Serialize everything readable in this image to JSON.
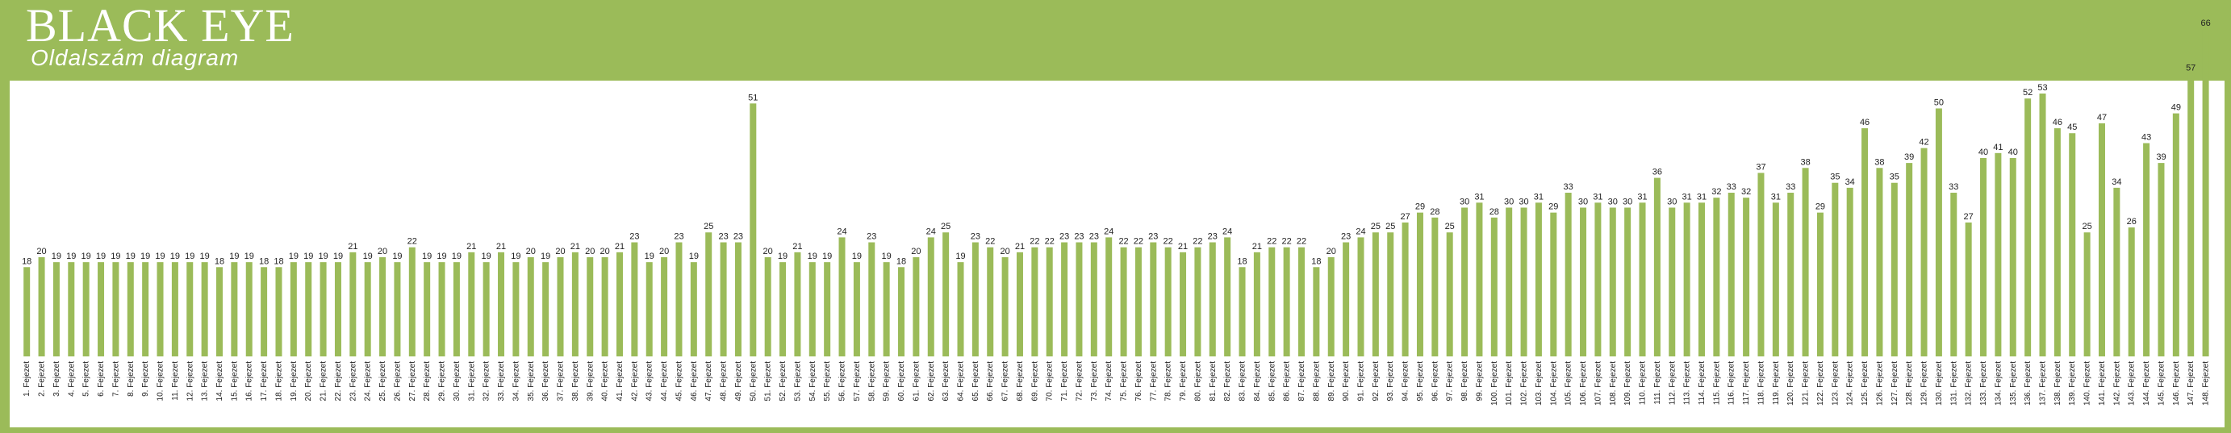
{
  "brand": {
    "title": "BLACK EYE",
    "subtitle": "Oldalszám diagram"
  },
  "colors": {
    "frame": "#9BBB59",
    "bar": "#9BBB59",
    "background": "#ffffff"
  },
  "chart_data": {
    "type": "bar",
    "title": "Oldalszám diagram",
    "xlabel": "",
    "ylabel": "",
    "grid": false,
    "legend": false,
    "categories": [
      "1. Fejezet",
      "2. Fejezet",
      "3. Fejezet",
      "4. Fejezet",
      "5. Fejezet",
      "6. Fejezet",
      "7. Fejezet",
      "8. Fejezet",
      "9. Fejezet",
      "10. Fejezet",
      "11. Fejezet",
      "12. Fejezet",
      "13. Fejezet",
      "14. Fejezet",
      "15. Fejezet",
      "16. Fejezet",
      "17. Fejezet",
      "18. Fejezet",
      "19. Fejezet",
      "20. Fejezet",
      "21. Fejezet",
      "22. Fejezet",
      "23. Fejezet",
      "24. Fejezet",
      "25. Fejezet",
      "26. Fejezet",
      "27. Fejezet",
      "28. Fejezet",
      "29. Fejezet",
      "30. Fejezet",
      "31. Fejezet",
      "32. Fejezet",
      "33. Fejezet",
      "34. Fejezet",
      "35. Fejezet",
      "36. Fejezet",
      "37. Fejezet",
      "38. Fejezet",
      "39. Fejezet",
      "40. Fejezet",
      "41. Fejezet",
      "42. Fejezet",
      "43. Fejezet",
      "44. Fejezet",
      "45. Fejezet",
      "46. Fejezet",
      "47. Fejezet",
      "48. Fejezet",
      "49. Fejezet",
      "50. Fejezet",
      "51. Fejezet",
      "52. Fejezet",
      "53. Fejezet",
      "54. Fejezet",
      "55. Fejezet",
      "56. Fejezet",
      "57. Fejezet",
      "58. Fejezet",
      "59. Fejezet",
      "60. Fejezet",
      "61. Fejezet",
      "62. Fejezet",
      "63. Fejezet",
      "64. Fejezet",
      "65. Fejezet",
      "66. Fejezet",
      "67. Fejezet",
      "68. Fejezet",
      "69. Fejezet",
      "70. Fejezet",
      "71. Fejezet",
      "72. Fejezet",
      "73. Fejezet",
      "74. Fejezet",
      "75. Fejezet",
      "76. Fejezet",
      "77. Fejezet",
      "78. Fejezet",
      "79. Fejezet",
      "80. Fejezet",
      "81. Fejezet",
      "82. Fejezet",
      "83. Fejezet",
      "84. Fejezet",
      "85. Fejezet",
      "86. Fejezet",
      "87. Fejezet",
      "88. Fejezet",
      "89. Fejezet",
      "90. Fejezet",
      "91. Fejezet",
      "92. Fejezet",
      "93. Fejezet",
      "94. Fejezet",
      "95. Fejezet",
      "96. Fejezet",
      "97. Fejezet",
      "98. Fejezet",
      "99. Fejezet",
      "100. Fejezet",
      "101. Fejezet",
      "102. Fejezet",
      "103. Fejezet",
      "104. Fejezet",
      "105. Fejezet",
      "106. Fejezet",
      "107. Fejezet",
      "108. Fejezet",
      "109. Fejezet",
      "110. Fejezet",
      "111. Fejezet",
      "112. Fejezet",
      "113. Fejezet",
      "114. Fejezet",
      "115. Fejezet",
      "116. Fejezet",
      "117. Fejezet",
      "118. Fejezet",
      "119. Fejezet",
      "120. Fejezet",
      "121. Fejezet",
      "122. Fejezet",
      "123. Fejezet",
      "124. Fejezet",
      "125. Fejezet",
      "126. Fejezet",
      "127. Fejezet",
      "128. Fejezet",
      "129. Fejezet",
      "130. Fejezet",
      "131. Fejezet",
      "132. Fejezet",
      "133. Fejezet",
      "134. Fejezet",
      "135. Fejezet",
      "136. Fejezet",
      "137. Fejezet",
      "138. Fejezet",
      "139. Fejezet",
      "140. Fejezet",
      "141. Fejezet",
      "142. Fejezet",
      "143. Fejezet",
      "144. Fejezet",
      "145. Fejezet",
      "146. Fejezet",
      "147. Fejezet",
      "148. Fejezet"
    ],
    "values": [
      18,
      20,
      19,
      19,
      19,
      19,
      19,
      19,
      19,
      19,
      19,
      19,
      19,
      18,
      19,
      19,
      18,
      18,
      19,
      19,
      19,
      19,
      21,
      19,
      20,
      19,
      22,
      19,
      19,
      19,
      21,
      19,
      21,
      19,
      20,
      19,
      20,
      21,
      20,
      20,
      21,
      23,
      19,
      20,
      23,
      19,
      25,
      23,
      23,
      51,
      20,
      19,
      21,
      19,
      19,
      24,
      19,
      23,
      19,
      18,
      20,
      24,
      25,
      19,
      23,
      22,
      20,
      21,
      22,
      22,
      23,
      23,
      23,
      24,
      22,
      22,
      23,
      22,
      21,
      22,
      23,
      24,
      18,
      21,
      22,
      22,
      22,
      18,
      20,
      23,
      24,
      25,
      25,
      27,
      29,
      28,
      25,
      30,
      31,
      28,
      30,
      30,
      31,
      29,
      33,
      30,
      31,
      30,
      30,
      31,
      36,
      30,
      31,
      31,
      32,
      33,
      32,
      37,
      31,
      33,
      38,
      29,
      35,
      34,
      46,
      38,
      35,
      39,
      42,
      50,
      33,
      27,
      40,
      41,
      40,
      52,
      53,
      46,
      45,
      25,
      47,
      34,
      26,
      43,
      39,
      49,
      57,
      66
    ],
    "ylim": [
      0,
      70
    ]
  }
}
